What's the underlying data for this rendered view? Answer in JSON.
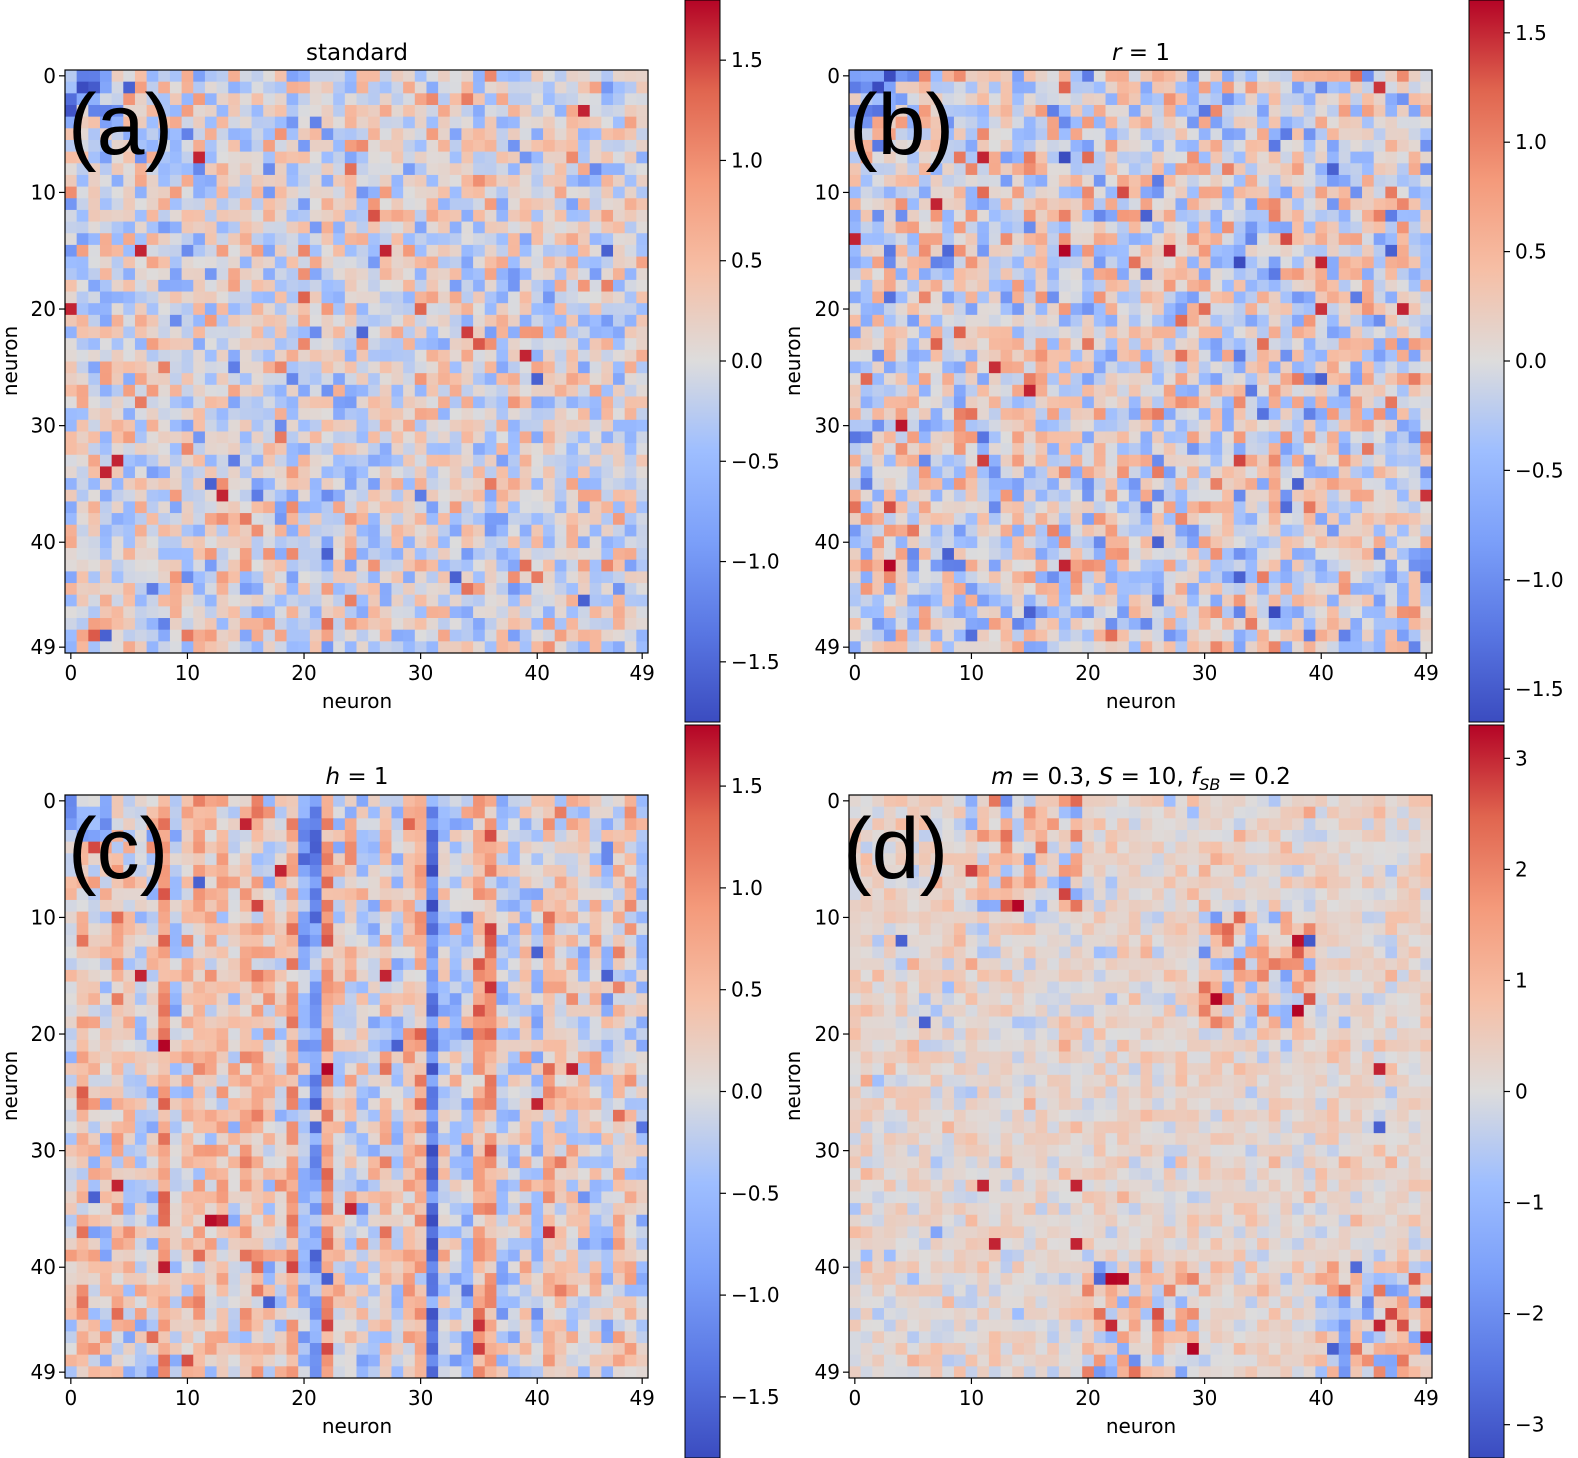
{
  "chart_data": [
    {
      "id": "a",
      "type": "heatmap",
      "panel_label": "(a)",
      "title": "standard",
      "xlabel": "neuron",
      "ylabel": "neuron",
      "size": 50,
      "x_ticks": [
        "0",
        "10",
        "20",
        "30",
        "40",
        "49"
      ],
      "y_ticks": [
        "0",
        "10",
        "20",
        "30",
        "40",
        "49"
      ],
      "colormap": "coolwarm",
      "vmin": -1.8,
      "vmax": 1.8,
      "colorbar_ticks": [
        "1.5",
        "1.0",
        "0.5",
        "0.0",
        "−0.5",
        "−1.0",
        "−1.5"
      ],
      "colorbar_values": [
        1.5,
        1.0,
        0.5,
        0.0,
        -0.5,
        -1.0,
        -1.5
      ],
      "pattern": "random",
      "seed": 101,
      "noise_scale": 0.45,
      "row_bias": 0,
      "col_bias": 0,
      "sparse_hot": [
        [
          6,
          15
        ],
        [
          27,
          15
        ],
        [
          13,
          36
        ],
        [
          3,
          34
        ],
        [
          4,
          33
        ],
        [
          0,
          20
        ],
        [
          11,
          7
        ],
        [
          39,
          24
        ],
        [
          44,
          3
        ]
      ],
      "sparse_cold": [
        [
          22,
          41
        ],
        [
          12,
          35
        ],
        [
          40,
          26
        ],
        [
          33,
          43
        ],
        [
          46,
          15
        ],
        [
          3,
          48
        ],
        [
          44,
          45
        ],
        [
          5,
          1
        ]
      ],
      "blocks": []
    },
    {
      "id": "b",
      "type": "heatmap",
      "panel_label": "(b)",
      "title": "r = 1",
      "title_var": "r",
      "title_rest": " = 1",
      "xlabel": "neuron",
      "ylabel": "neuron",
      "size": 50,
      "x_ticks": [
        "0",
        "10",
        "20",
        "30",
        "40",
        "49"
      ],
      "y_ticks": [
        "0",
        "10",
        "20",
        "30",
        "40",
        "49"
      ],
      "colormap": "coolwarm",
      "vmin": -1.65,
      "vmax": 1.65,
      "colorbar_ticks": [
        "1.5",
        "1.0",
        "0.5",
        "0.0",
        "−0.5",
        "−1.0",
        "−1.5"
      ],
      "colorbar_values": [
        1.5,
        1.0,
        0.5,
        0.0,
        -0.5,
        -1.0,
        -1.5
      ],
      "pattern": "random",
      "seed": 202,
      "noise_scale": 0.5,
      "row_bias": 0,
      "col_bias": 0,
      "sparse_hot": [
        [
          11,
          7
        ],
        [
          7,
          11
        ],
        [
          27,
          15
        ],
        [
          15,
          27
        ],
        [
          0,
          14
        ],
        [
          47,
          20
        ],
        [
          40,
          16
        ],
        [
          18,
          42
        ]
      ],
      "sparse_cold": [
        [
          26,
          40
        ],
        [
          40,
          26
        ],
        [
          46,
          15
        ],
        [
          15,
          46
        ],
        [
          8,
          41
        ],
        [
          41,
          8
        ],
        [
          33,
          43
        ],
        [
          38,
          35
        ],
        [
          25,
          12
        ]
      ],
      "blocks": []
    },
    {
      "id": "c",
      "type": "heatmap",
      "panel_label": "(c)",
      "title": "h = 1",
      "title_var": "h",
      "title_rest": " = 1",
      "xlabel": "neuron",
      "ylabel": "neuron",
      "size": 50,
      "x_ticks": [
        "0",
        "10",
        "20",
        "30",
        "40",
        "49"
      ],
      "y_ticks": [
        "0",
        "10",
        "20",
        "30",
        "40",
        "49"
      ],
      "colormap": "coolwarm",
      "vmin": -1.8,
      "vmax": 1.8,
      "colorbar_ticks": [
        "1.5",
        "1.0",
        "0.5",
        "0.0",
        "−0.5",
        "−1.0",
        "−1.5"
      ],
      "colorbar_values": [
        1.5,
        1.0,
        0.5,
        0.0,
        -0.5,
        -1.0,
        -1.5
      ],
      "pattern": "column-biased",
      "seed": 303,
      "noise_scale": 0.4,
      "row_bias": 0,
      "col_bias": 0.45,
      "sparse_hot": [
        [
          13,
          36
        ],
        [
          4,
          33
        ],
        [
          6,
          15
        ],
        [
          27,
          15
        ],
        [
          18,
          6
        ],
        [
          24,
          35
        ],
        [
          40,
          26
        ],
        [
          43,
          23
        ]
      ],
      "sparse_cold": [
        [
          22,
          41
        ],
        [
          2,
          34
        ],
        [
          11,
          7
        ],
        [
          28,
          21
        ],
        [
          40,
          13
        ],
        [
          46,
          15
        ],
        [
          17,
          43
        ]
      ],
      "blocks": []
    },
    {
      "id": "d",
      "type": "heatmap",
      "panel_label": "(d)",
      "title": "m = 0.3,  S = 10,  f_SB = 0.2",
      "title_parts": [
        "m",
        " = 0.3,  ",
        "S",
        " = 10,  ",
        "f",
        "SB",
        " = 0.2"
      ],
      "xlabel": "neuron",
      "ylabel": "neuron",
      "size": 50,
      "x_ticks": [
        "0",
        "10",
        "20",
        "30",
        "40",
        "49"
      ],
      "y_ticks": [
        "0",
        "10",
        "20",
        "30",
        "40",
        "49"
      ],
      "colormap": "coolwarm",
      "vmin": -3.3,
      "vmax": 3.3,
      "colorbar_ticks": [
        "3",
        "2",
        "1",
        "0",
        "−1",
        "−2",
        "−3"
      ],
      "colorbar_values": [
        3,
        2,
        1,
        0,
        -1,
        -2,
        -3
      ],
      "pattern": "blocks",
      "seed": 404,
      "noise_scale": 0.35,
      "row_bias": 0,
      "col_bias": 0,
      "sparse_hot": [
        [
          19,
          33
        ],
        [
          19,
          38
        ],
        [
          11,
          33
        ],
        [
          12,
          38
        ],
        [
          49,
          46
        ],
        [
          45,
          23
        ]
      ],
      "sparse_cold": [
        [
          4,
          12
        ],
        [
          6,
          19
        ],
        [
          45,
          28
        ],
        [
          41,
          47
        ]
      ],
      "blocks": [
        [
          0,
          10,
          10,
          20
        ],
        [
          10,
          20,
          30,
          40
        ],
        [
          40,
          50,
          20,
          30
        ],
        [
          40,
          50,
          40,
          50
        ]
      ]
    }
  ]
}
